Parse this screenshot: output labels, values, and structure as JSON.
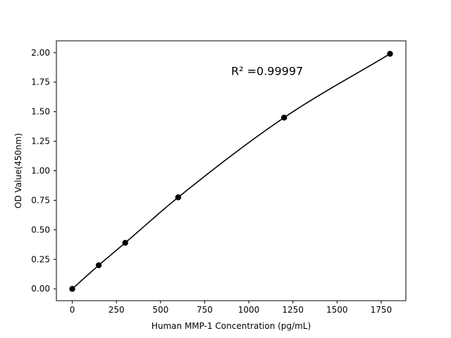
{
  "chart_data": {
    "type": "line",
    "title": "",
    "xlabel": "Human MMP-1 Concentration (pg/mL)",
    "ylabel": "OD Value(450nm)",
    "xlim": [
      -90,
      1890
    ],
    "ylim": [
      -0.1,
      2.1
    ],
    "xticks": [
      0,
      250,
      500,
      750,
      1000,
      1250,
      1500,
      1750
    ],
    "xtick_labels": [
      "0",
      "250",
      "500",
      "750",
      "1000",
      "1250",
      "1500",
      "1750"
    ],
    "yticks": [
      0.0,
      0.25,
      0.5,
      0.75,
      1.0,
      1.25,
      1.5,
      1.75,
      2.0
    ],
    "ytick_labels": [
      "0.00",
      "0.25",
      "0.50",
      "0.75",
      "1.00",
      "1.25",
      "1.50",
      "1.75",
      "2.00"
    ],
    "grid": false,
    "series": [
      {
        "x": [
          0,
          150,
          300,
          600,
          1200,
          1800
        ],
        "y": [
          0.0,
          0.2,
          0.39,
          0.775,
          1.45,
          1.99
        ],
        "color": "#000000",
        "marker": "circle"
      }
    ],
    "annotations": [
      {
        "text": "R² =0.99997",
        "x": 900,
        "y": 1.81
      }
    ]
  }
}
